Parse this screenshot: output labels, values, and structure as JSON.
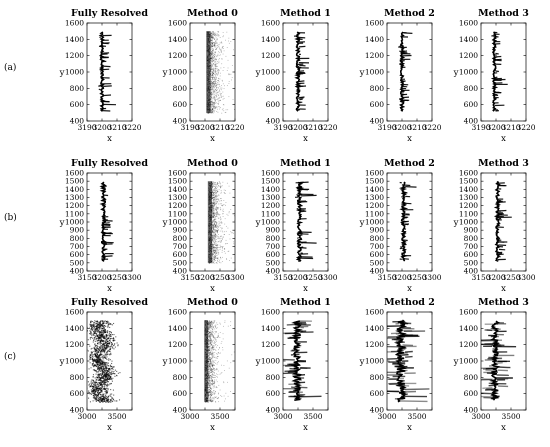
{
  "chart_data": {
    "type": "scatter",
    "row_labels": [
      "(a)",
      "(b)",
      "(c)"
    ],
    "column_titles": [
      "Fully Resolved",
      "Method 0",
      "Method 1",
      "Method 2",
      "Method 3"
    ],
    "xlabel": "x",
    "ylabel": "y",
    "grid": false,
    "rows": [
      {
        "label": "(a)",
        "xlim": [
          3190,
          3220
        ],
        "xticks": [
          "3190",
          "3200",
          "3210",
          "3220"
        ],
        "ylim": [
          400,
          1600
        ],
        "yticks": [
          "400",
          "600",
          "800",
          "1000",
          "1200",
          "1400",
          "1600"
        ],
        "panels": [
          {
            "title": "Fully Resolved",
            "pattern": "filament",
            "x_center": 3200,
            "spread": 2.0,
            "finger_len": 5,
            "y_range": [
              520,
              1490
            ]
          },
          {
            "title": "Method 0",
            "pattern": "band",
            "x_center": 3202,
            "spread": 6.0,
            "y_range": [
              500,
              1500
            ]
          },
          {
            "title": "Method 1",
            "pattern": "filament",
            "x_center": 3200,
            "spread": 2.0,
            "finger_len": 4,
            "y_range": [
              520,
              1490
            ]
          },
          {
            "title": "Method 2",
            "pattern": "filament",
            "x_center": 3200,
            "spread": 2.0,
            "finger_len": 4,
            "y_range": [
              520,
              1490
            ]
          },
          {
            "title": "Method 3",
            "pattern": "filament",
            "x_center": 3199,
            "spread": 2.0,
            "finger_len": 4,
            "y_range": [
              520,
              1490
            ]
          }
        ]
      },
      {
        "label": "(b)",
        "xlim": [
          3150,
          3300
        ],
        "xticks": [
          "3150",
          "3200",
          "3250",
          "3300"
        ],
        "ylim": [
          400,
          1600
        ],
        "yticks": [
          "400",
          "500",
          "600",
          "700",
          "800",
          "900",
          "1000",
          "1100",
          "1200",
          "1300",
          "1400",
          "1500",
          "1600"
        ],
        "panels": [
          {
            "title": "Fully Resolved",
            "pattern": "filament",
            "x_center": 3205,
            "spread": 12,
            "finger_len": 25,
            "y_range": [
              520,
              1490
            ]
          },
          {
            "title": "Method 0",
            "pattern": "band",
            "x_center": 3215,
            "spread": 28,
            "y_range": [
              500,
              1500
            ]
          },
          {
            "title": "Method 1",
            "pattern": "filament",
            "x_center": 3205,
            "spread": 12,
            "finger_len": 25,
            "y_range": [
              520,
              1490
            ]
          },
          {
            "title": "Method 2",
            "pattern": "filament",
            "x_center": 3205,
            "spread": 12,
            "finger_len": 25,
            "y_range": [
              520,
              1490
            ]
          },
          {
            "title": "Method 3",
            "pattern": "filament",
            "x_center": 3205,
            "spread": 10,
            "finger_len": 25,
            "y_range": [
              520,
              1490
            ]
          }
        ]
      },
      {
        "label": "(c)",
        "xlim": [
          3000,
          3800
        ],
        "xticks": [
          "3000",
          "",
          "3500",
          ""
        ],
        "ylim": [
          400,
          1600
        ],
        "yticks": [
          "400",
          "600",
          "800",
          "1000",
          "1200",
          "1400",
          "1600"
        ],
        "panels": [
          {
            "title": "Fully Resolved",
            "pattern": "cloud",
            "x_center": 3250,
            "spread": 120,
            "y_range": [
              500,
              1500
            ]
          },
          {
            "title": "Method 0",
            "pattern": "band",
            "x_center": 3280,
            "spread": 140,
            "y_range": [
              500,
              1500
            ]
          },
          {
            "title": "Method 1",
            "pattern": "streaks",
            "x_center": 3250,
            "spread": 120,
            "finger_len": 200,
            "y_range": [
              520,
              1490
            ]
          },
          {
            "title": "Method 2",
            "pattern": "streaks",
            "x_center": 3250,
            "spread": 160,
            "finger_len": 250,
            "y_range": [
              500,
              1500
            ]
          },
          {
            "title": "Method 3",
            "pattern": "streaks",
            "x_center": 3250,
            "spread": 110,
            "finger_len": 200,
            "y_range": [
              520,
              1490
            ]
          }
        ]
      }
    ]
  }
}
